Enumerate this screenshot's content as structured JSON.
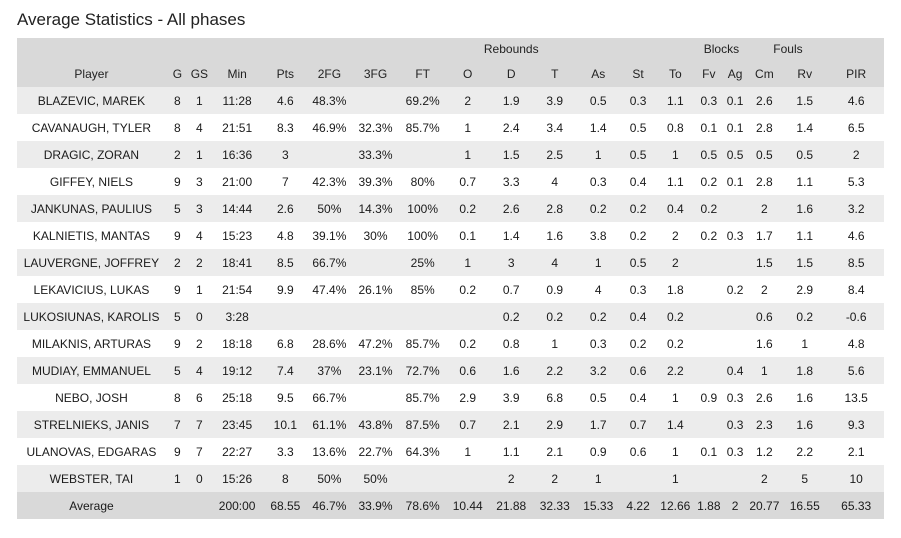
{
  "title": "Average Statistics - All phases",
  "groups": {
    "rebounds": "Rebounds",
    "blocks": "Blocks",
    "fouls": "Fouls"
  },
  "columns": [
    "Player",
    "G",
    "GS",
    "Min",
    "Pts",
    "2FG",
    "3FG",
    "FT",
    "O",
    "D",
    "T",
    "As",
    "St",
    "To",
    "Fv",
    "Ag",
    "Cm",
    "Rv",
    "PIR"
  ],
  "rows": [
    [
      "BLAZEVIC, MAREK",
      "8",
      "1",
      "11:28",
      "4.6",
      "48.3%",
      "",
      "69.2%",
      "2",
      "1.9",
      "3.9",
      "0.5",
      "0.3",
      "1.1",
      "0.3",
      "0.1",
      "2.6",
      "1.5",
      "4.6"
    ],
    [
      "CAVANAUGH, TYLER",
      "8",
      "4",
      "21:51",
      "8.3",
      "46.9%",
      "32.3%",
      "85.7%",
      "1",
      "2.4",
      "3.4",
      "1.4",
      "0.5",
      "0.8",
      "0.1",
      "0.1",
      "2.8",
      "1.4",
      "6.5"
    ],
    [
      "DRAGIC, ZORAN",
      "2",
      "1",
      "16:36",
      "3",
      "",
      "33.3%",
      "",
      "1",
      "1.5",
      "2.5",
      "1",
      "0.5",
      "1",
      "0.5",
      "0.5",
      "0.5",
      "0.5",
      "2"
    ],
    [
      "GIFFEY, NIELS",
      "9",
      "3",
      "21:00",
      "7",
      "42.3%",
      "39.3%",
      "80%",
      "0.7",
      "3.3",
      "4",
      "0.3",
      "0.4",
      "1.1",
      "0.2",
      "0.1",
      "2.8",
      "1.1",
      "5.3"
    ],
    [
      "JANKUNAS, PAULIUS",
      "5",
      "3",
      "14:44",
      "2.6",
      "50%",
      "14.3%",
      "100%",
      "0.2",
      "2.6",
      "2.8",
      "0.2",
      "0.2",
      "0.4",
      "0.2",
      "",
      "2",
      "1.6",
      "3.2"
    ],
    [
      "KALNIETIS, MANTAS",
      "9",
      "4",
      "15:23",
      "4.8",
      "39.1%",
      "30%",
      "100%",
      "0.1",
      "1.4",
      "1.6",
      "3.8",
      "0.2",
      "2",
      "0.2",
      "0.3",
      "1.7",
      "1.1",
      "4.6"
    ],
    [
      "LAUVERGNE, JOFFREY",
      "2",
      "2",
      "18:41",
      "8.5",
      "66.7%",
      "",
      "25%",
      "1",
      "3",
      "4",
      "1",
      "0.5",
      "2",
      "",
      "",
      "1.5",
      "1.5",
      "8.5"
    ],
    [
      "LEKAVICIUS, LUKAS",
      "9",
      "1",
      "21:54",
      "9.9",
      "47.4%",
      "26.1%",
      "85%",
      "0.2",
      "0.7",
      "0.9",
      "4",
      "0.3",
      "1.8",
      "",
      "0.2",
      "2",
      "2.9",
      "8.4"
    ],
    [
      "LUKOSIUNAS, KAROLIS",
      "5",
      "0",
      "3:28",
      "",
      "",
      "",
      "",
      "",
      "0.2",
      "0.2",
      "0.2",
      "0.4",
      "0.2",
      "",
      "",
      "0.6",
      "0.2",
      "-0.6"
    ],
    [
      "MILAKNIS, ARTURAS",
      "9",
      "2",
      "18:18",
      "6.8",
      "28.6%",
      "47.2%",
      "85.7%",
      "0.2",
      "0.8",
      "1",
      "0.3",
      "0.2",
      "0.2",
      "",
      "",
      "1.6",
      "1",
      "4.8"
    ],
    [
      "MUDIAY, EMMANUEL",
      "5",
      "4",
      "19:12",
      "7.4",
      "37%",
      "23.1%",
      "72.7%",
      "0.6",
      "1.6",
      "2.2",
      "3.2",
      "0.6",
      "2.2",
      "",
      "0.4",
      "1",
      "1.8",
      "5.6"
    ],
    [
      "NEBO, JOSH",
      "8",
      "6",
      "25:18",
      "9.5",
      "66.7%",
      "",
      "85.7%",
      "2.9",
      "3.9",
      "6.8",
      "0.5",
      "0.4",
      "1",
      "0.9",
      "0.3",
      "2.6",
      "1.6",
      "13.5"
    ],
    [
      "STRELNIEKS, JANIS",
      "7",
      "7",
      "23:45",
      "10.1",
      "61.1%",
      "43.8%",
      "87.5%",
      "0.7",
      "2.1",
      "2.9",
      "1.7",
      "0.7",
      "1.4",
      "",
      "0.3",
      "2.3",
      "1.6",
      "9.3"
    ],
    [
      "ULANOVAS, EDGARAS",
      "9",
      "7",
      "22:27",
      "3.3",
      "13.6%",
      "22.7%",
      "64.3%",
      "1",
      "1.1",
      "2.1",
      "0.9",
      "0.6",
      "1",
      "0.1",
      "0.3",
      "1.2",
      "2.2",
      "2.1"
    ],
    [
      "WEBSTER, TAI",
      "1",
      "0",
      "15:26",
      "8",
      "50%",
      "50%",
      "",
      "",
      "2",
      "2",
      "1",
      "",
      "1",
      "",
      "",
      "2",
      "5",
      "10"
    ]
  ],
  "footer": [
    "Average",
    "",
    "",
    "200:00",
    "68.55",
    "46.7%",
    "33.9%",
    "78.6%",
    "10.44",
    "21.88",
    "32.33",
    "15.33",
    "4.22",
    "12.66",
    "1.88",
    "2",
    "20.77",
    "16.55",
    "65.33"
  ]
}
